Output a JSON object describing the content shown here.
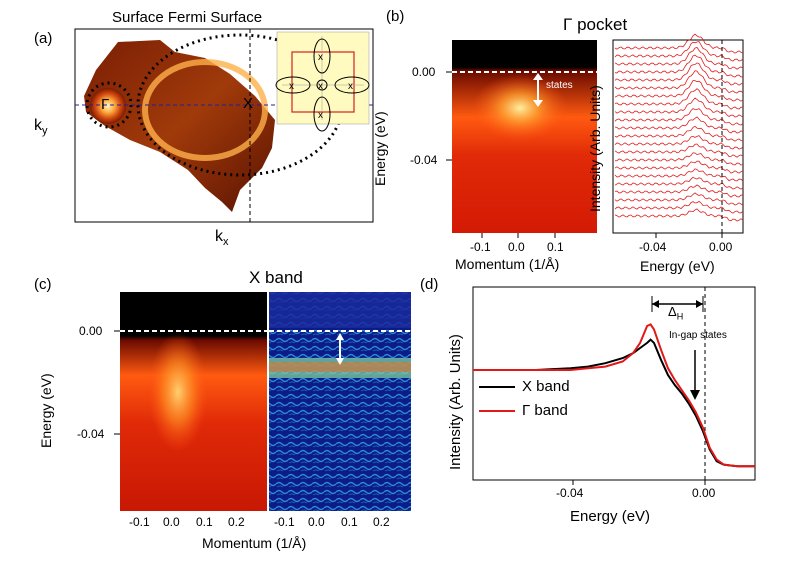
{
  "panel_a": {
    "label": "(a)",
    "title": "Surface Fermi Surface",
    "xlabel": "k",
    "xlabel_sub": "x",
    "ylabel": "k",
    "ylabel_sub": "y",
    "gamma": "Γ",
    "x_point": "X"
  },
  "panel_b": {
    "label": "(b)",
    "title": "Γ pocket",
    "ylabel": "Energy (eV)",
    "xlabel": "Momentum (1/Å)",
    "states_label": "states",
    "y_ticks": [
      "0.00",
      "-0.04"
    ],
    "x_ticks": [
      "-0.1",
      "0.0",
      "0.1"
    ],
    "edc_ylabel": "Intensity (Arb. Units)",
    "edc_xlabel": "Energy (eV)",
    "edc_x_ticks": [
      "-0.04",
      "0.00"
    ]
  },
  "panel_c": {
    "label": "(c)",
    "title": "X band",
    "ylabel": "Energy (eV)",
    "xlabel": "Momentum (1/Å)",
    "y_ticks": [
      "0.00",
      "-0.04"
    ],
    "x_ticks": [
      "-0.1",
      "0.0",
      "0.1",
      "0.2",
      "-0.1",
      "0.0",
      "0.1",
      "0.2"
    ]
  },
  "panel_d": {
    "label": "(d)",
    "ylabel": "Intensity (Arb. Units)",
    "xlabel": "Energy (eV)",
    "x_ticks": [
      "-0.04",
      "0.00"
    ],
    "delta": "Δ",
    "delta_sub": "H",
    "annotation": "In-gap states",
    "legend": [
      {
        "name": "X band",
        "color": "#000000"
      },
      {
        "name": "Γ band",
        "color": "#e01818"
      }
    ]
  },
  "chart_data": {
    "type": "line",
    "xlabel": "Energy (eV)",
    "ylabel": "Intensity (Arb. Units)",
    "xlim": [
      -0.068,
      0.013
    ],
    "series": [
      {
        "name": "X band",
        "x": [
          -0.068,
          -0.06,
          -0.05,
          -0.04,
          -0.035,
          -0.03,
          -0.025,
          -0.022,
          -0.02,
          -0.018,
          -0.017,
          -0.016,
          -0.014,
          -0.012,
          -0.01,
          -0.008,
          -0.006,
          -0.004,
          -0.002,
          0.0,
          0.002,
          0.004,
          0.006,
          0.008,
          0.01,
          0.013
        ],
        "y": [
          0.58,
          0.58,
          0.58,
          0.59,
          0.6,
          0.62,
          0.65,
          0.68,
          0.71,
          0.74,
          0.76,
          0.74,
          0.64,
          0.55,
          0.49,
          0.44,
          0.38,
          0.31,
          0.22,
          0.11,
          0.04,
          0.02,
          0.015,
          0.01,
          0.01,
          0.01
        ]
      },
      {
        "name": "Γ band",
        "x": [
          -0.068,
          -0.06,
          -0.05,
          -0.04,
          -0.035,
          -0.03,
          -0.025,
          -0.022,
          -0.02,
          -0.019,
          -0.018,
          -0.017,
          -0.016,
          -0.014,
          -0.012,
          -0.01,
          -0.008,
          -0.006,
          -0.004,
          -0.002,
          0.0,
          0.002,
          0.004,
          0.006,
          0.008,
          0.01,
          0.013
        ],
        "y": [
          0.58,
          0.58,
          0.58,
          0.58,
          0.59,
          0.6,
          0.63,
          0.68,
          0.74,
          0.79,
          0.84,
          0.85,
          0.82,
          0.7,
          0.59,
          0.52,
          0.46,
          0.4,
          0.33,
          0.24,
          0.12,
          0.05,
          0.02,
          0.015,
          0.01,
          0.01,
          0.01
        ]
      }
    ],
    "annotations": [
      "Δ_H",
      "In-gap states"
    ]
  }
}
